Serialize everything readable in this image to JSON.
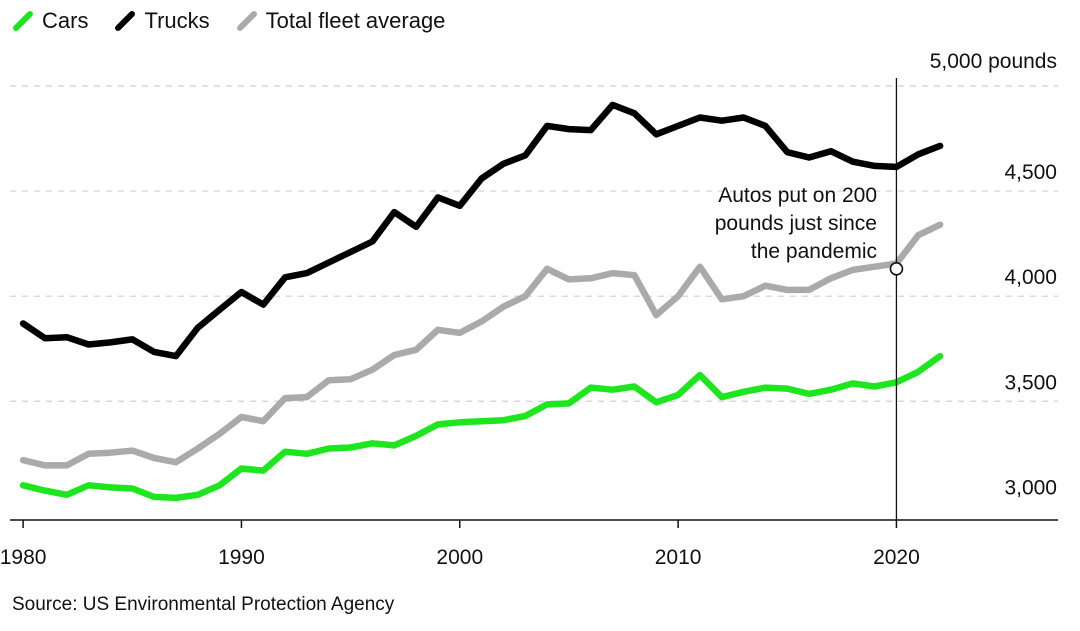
{
  "legend": [
    {
      "label": "Cars",
      "color": "#1ee61e"
    },
    {
      "label": "Trucks",
      "color": "#000000"
    },
    {
      "label": "Total fleet average",
      "color": "#aaaaaa"
    }
  ],
  "source": "Source: US Environmental Protection Agency",
  "annotation": {
    "lines": [
      "Autos put on 200",
      "pounds just since",
      "the pandemic"
    ],
    "x": 2020,
    "y": 4130
  },
  "chart_data": {
    "type": "line",
    "title": "",
    "xlabel": "",
    "ylabel": "",
    "xlim": [
      1979.4,
      2027.4
    ],
    "ylim": [
      3000,
      5000
    ],
    "y_ticks": [
      {
        "value": 3000,
        "label": "3,000"
      },
      {
        "value": 3500,
        "label": "3,500"
      },
      {
        "value": 4000,
        "label": "4,000"
      },
      {
        "value": 4500,
        "label": "4,500"
      },
      {
        "value": 5000,
        "label": "5,000 pounds"
      }
    ],
    "x_ticks": [
      {
        "value": 1980,
        "label": "1980"
      },
      {
        "value": 1990,
        "label": "1990"
      },
      {
        "value": 2000,
        "label": "2000"
      },
      {
        "value": 2010,
        "label": "2010"
      },
      {
        "value": 2020,
        "label": "2020"
      }
    ],
    "grid": true,
    "legend_position": "top-left",
    "x": [
      1980,
      1981,
      1982,
      1983,
      1984,
      1985,
      1986,
      1987,
      1988,
      1989,
      1990,
      1991,
      1992,
      1993,
      1994,
      1995,
      1996,
      1997,
      1998,
      1999,
      2000,
      2001,
      2002,
      2003,
      2004,
      2005,
      2006,
      2007,
      2008,
      2009,
      2010,
      2011,
      2012,
      2013,
      2014,
      2015,
      2016,
      2017,
      2018,
      2019,
      2020,
      2021,
      2022
    ],
    "series": [
      {
        "name": "Trucks",
        "color": "#000000",
        "values": [
          3870,
          3800,
          3805,
          3770,
          3780,
          3795,
          3735,
          3715,
          3850,
          3935,
          4020,
          3960,
          4090,
          4110,
          4160,
          4210,
          4260,
          4400,
          4330,
          4470,
          4430,
          4560,
          4630,
          4670,
          4810,
          4795,
          4790,
          4910,
          4870,
          4770,
          4810,
          4850,
          4835,
          4850,
          4810,
          4685,
          4660,
          4690,
          4640,
          4620,
          4615,
          4675,
          4715
        ]
      },
      {
        "name": "Total fleet average",
        "color": "#aaaaaa",
        "values": [
          3220,
          3195,
          3195,
          3250,
          3255,
          3265,
          3230,
          3210,
          3275,
          3345,
          3425,
          3405,
          3515,
          3520,
          3600,
          3605,
          3650,
          3720,
          3745,
          3840,
          3825,
          3880,
          3950,
          4000,
          4130,
          4080,
          4085,
          4110,
          4100,
          3910,
          4000,
          4140,
          3985,
          4000,
          4050,
          4030,
          4030,
          4085,
          4125,
          4140,
          4155,
          4290,
          4340
        ]
      },
      {
        "name": "Cars",
        "color": "#1ee61e",
        "values": [
          3100,
          3075,
          3055,
          3100,
          3090,
          3085,
          3045,
          3040,
          3055,
          3100,
          3180,
          3170,
          3260,
          3250,
          3275,
          3280,
          3300,
          3290,
          3335,
          3390,
          3400,
          3405,
          3410,
          3430,
          3485,
          3490,
          3565,
          3555,
          3570,
          3495,
          3530,
          3625,
          3520,
          3545,
          3565,
          3560,
          3535,
          3555,
          3585,
          3570,
          3590,
          3640,
          3715
        ]
      }
    ]
  }
}
